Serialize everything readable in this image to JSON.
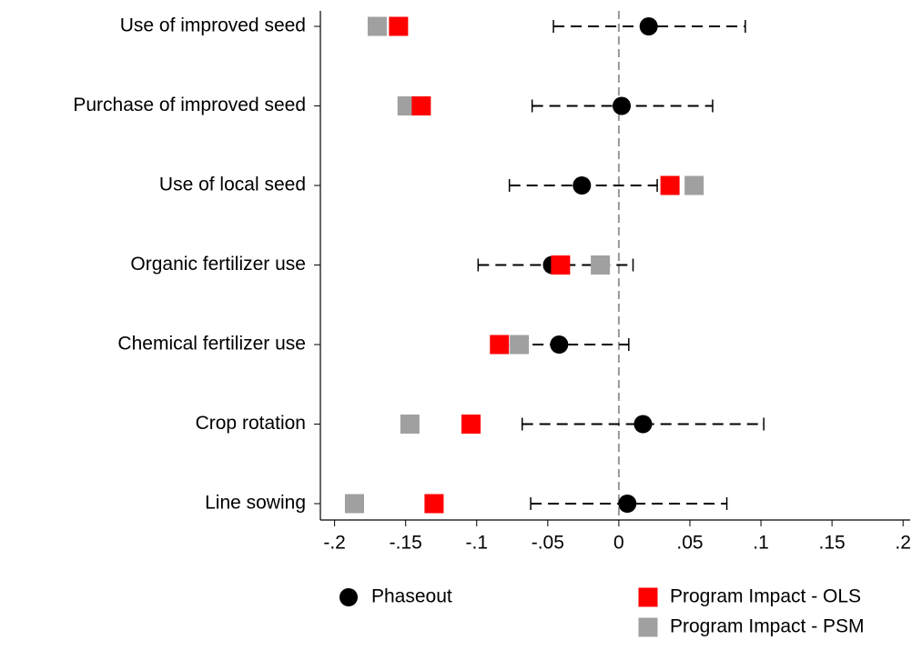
{
  "chart_data": {
    "type": "coefplot",
    "categories": [
      "Use of improved seed",
      "Purchase of improved seed",
      "Use of local seed",
      "Organic fertilizer use",
      "Chemical fertilizer use",
      "Crop rotation",
      "Line sowing"
    ],
    "series": [
      {
        "name": "Phaseout",
        "color": "#000000",
        "marker": "circle",
        "values": [
          0.021,
          0.002,
          -0.026,
          -0.047,
          -0.042,
          0.017,
          0.006
        ],
        "ci_low": [
          -0.046,
          -0.061,
          -0.077,
          -0.099,
          -0.085,
          -0.068,
          -0.062
        ],
        "ci_high": [
          0.089,
          0.066,
          0.027,
          0.01,
          0.007,
          0.102,
          0.076
        ]
      },
      {
        "name": "Program Impact - PSM",
        "color": "#a0a0a0",
        "marker": "square",
        "values": [
          -0.17,
          -0.149,
          0.053,
          -0.013,
          -0.07,
          -0.147,
          -0.186
        ]
      },
      {
        "name": "Program Impact - OLS",
        "color": "#ff0000",
        "marker": "square",
        "values": [
          -0.155,
          -0.139,
          0.036,
          -0.041,
          -0.084,
          -0.104,
          -0.13
        ]
      }
    ],
    "xlim": [
      -0.21,
      0.205
    ],
    "xticks": [
      {
        "value": -0.2,
        "label": "-.2"
      },
      {
        "value": -0.15,
        "label": "-.15"
      },
      {
        "value": -0.1,
        "label": "-.1"
      },
      {
        "value": -0.05,
        "label": "-.05"
      },
      0,
      {
        "value": 0.05,
        "label": ".05"
      },
      {
        "value": 0.1,
        "label": ".1"
      },
      {
        "value": 0.15,
        "label": ".15"
      },
      {
        "value": 0.2,
        "label": ".2"
      }
    ],
    "reference_line": 0
  }
}
